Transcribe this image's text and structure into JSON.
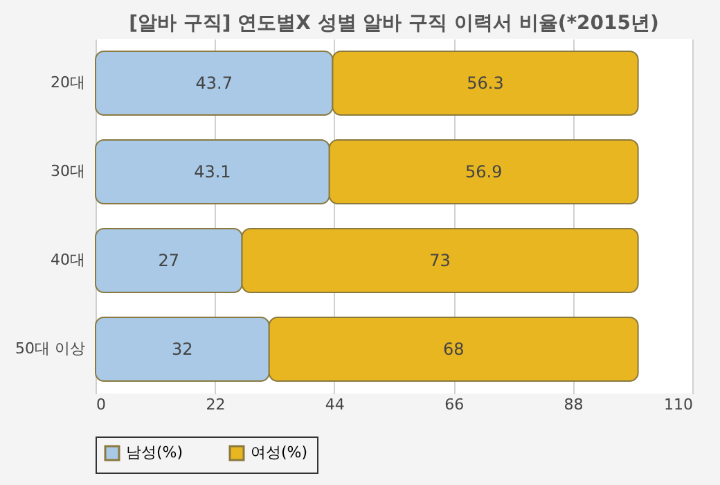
{
  "chart_data": {
    "type": "bar",
    "orientation": "horizontal",
    "stacked": true,
    "title": "[알바 구직] 연도별X 성별 알바 구직 이력서 비율(*2015년)",
    "categories": [
      "20대",
      "30대",
      "40대",
      "50대 이상"
    ],
    "series": [
      {
        "name": "남성(%)",
        "color": "#a9c9e6",
        "values": [
          43.7,
          43.1,
          27,
          32
        ]
      },
      {
        "name": "여성(%)",
        "color": "#e8b620",
        "values": [
          56.3,
          56.9,
          73,
          68
        ]
      }
    ],
    "xlim": [
      0,
      110
    ],
    "xticks": [
      0,
      22,
      44,
      66,
      88,
      110
    ],
    "grid": "x",
    "legend": "bottom",
    "data_labels": true
  }
}
